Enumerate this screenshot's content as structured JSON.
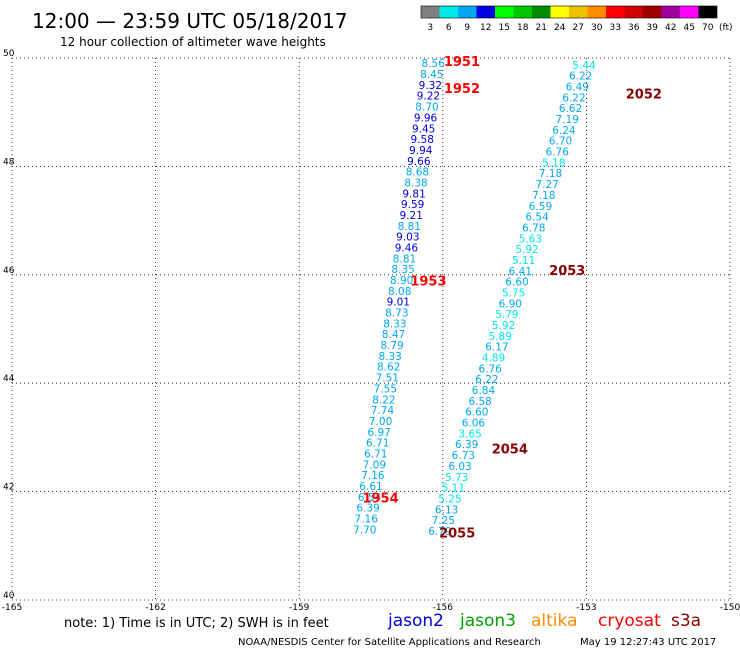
{
  "header": {
    "title": "12:00 — 23:59 UTC 05/18/2017",
    "subtitle": "12 hour collection of altimeter wave heights"
  },
  "legend_scale": {
    "labels": [
      "3",
      "6",
      "9",
      "12",
      "15",
      "18",
      "21",
      "24",
      "27",
      "30",
      "33",
      "36",
      "39",
      "42",
      "45",
      "70"
    ],
    "unit": "(ft)",
    "colors": [
      "#808080",
      "#00e8e8",
      "#00a8f0",
      "#0000e0",
      "#00ff00",
      "#00c800",
      "#008c00",
      "#ffff00",
      "#f0c000",
      "#ff8c00",
      "#ff0000",
      "#d00000",
      "#a00000",
      "#a000a0",
      "#ff00ff",
      "#000000"
    ]
  },
  "footer": {
    "note": "note: 1) Time is in UTC; 2) SWH is in feet",
    "credit": "NOAA/NESDIS Center for Satellite Applications and Research",
    "timestamp": "May 19 12:27:43 UTC 2017",
    "satellites": [
      {
        "name": "jason2",
        "color": "#0000e0"
      },
      {
        "name": "jason3",
        "color": "#00a000"
      },
      {
        "name": "altika",
        "color": "#ff8c00"
      },
      {
        "name": "cryosat",
        "color": "#ff0000"
      },
      {
        "name": "s3a",
        "color": "#8b0000"
      }
    ]
  },
  "chart_data": {
    "type": "scatter",
    "title": "12:00 — 23:59 UTC 05/18/2017",
    "subtitle": "12 hour collection of altimeter wave heights",
    "xlabel": "",
    "ylabel": "",
    "xlim": [
      -165,
      -150
    ],
    "ylim": [
      40,
      50
    ],
    "grid": true,
    "x_ticks": [
      "-165",
      "-162",
      "-159",
      "-156",
      "-153",
      "-150"
    ],
    "y_ticks": [
      "40",
      "42",
      "44",
      "46",
      "48",
      "50"
    ],
    "series": [
      {
        "name": "jason2",
        "color_by_value": true,
        "points": [
          {
            "x": -156.2,
            "y": 49.83,
            "v": "8.56"
          },
          {
            "x": -156.23,
            "y": 49.63,
            "v": "8.45"
          },
          {
            "x": -156.26,
            "y": 49.43,
            "v": "9.32"
          },
          {
            "x": -156.3,
            "y": 49.23,
            "v": "9.22"
          },
          {
            "x": -156.33,
            "y": 49.03,
            "v": "8.70"
          },
          {
            "x": -156.36,
            "y": 48.83,
            "v": "9.96"
          },
          {
            "x": -156.4,
            "y": 48.63,
            "v": "9.45"
          },
          {
            "x": -156.43,
            "y": 48.43,
            "v": "9.58"
          },
          {
            "x": -156.46,
            "y": 48.23,
            "v": "9.94"
          },
          {
            "x": -156.5,
            "y": 48.03,
            "v": "9.66"
          },
          {
            "x": -156.53,
            "y": 47.83,
            "v": "8.68"
          },
          {
            "x": -156.56,
            "y": 47.63,
            "v": "8.38"
          },
          {
            "x": -156.6,
            "y": 47.43,
            "v": "9.81"
          },
          {
            "x": -156.63,
            "y": 47.23,
            "v": "9.59"
          },
          {
            "x": -156.66,
            "y": 47.03,
            "v": "9.21"
          },
          {
            "x": -156.7,
            "y": 46.83,
            "v": "8.81"
          },
          {
            "x": -156.73,
            "y": 46.63,
            "v": "9.03"
          },
          {
            "x": -156.76,
            "y": 46.43,
            "v": "9.46"
          },
          {
            "x": -156.8,
            "y": 46.23,
            "v": "8.81"
          },
          {
            "x": -156.83,
            "y": 46.03,
            "v": "8.35"
          },
          {
            "x": -156.86,
            "y": 45.83,
            "v": "8.90"
          },
          {
            "x": -156.9,
            "y": 45.63,
            "v": "8.08"
          },
          {
            "x": -156.93,
            "y": 45.43,
            "v": "9.01"
          },
          {
            "x": -156.96,
            "y": 45.23,
            "v": "8.73"
          },
          {
            "x": -157.0,
            "y": 45.03,
            "v": "8.33"
          },
          {
            "x": -157.03,
            "y": 44.83,
            "v": "8.47"
          },
          {
            "x": -157.06,
            "y": 44.63,
            "v": "8.79"
          },
          {
            "x": -157.1,
            "y": 44.43,
            "v": "8.33"
          },
          {
            "x": -157.13,
            "y": 44.23,
            "v": "8.62"
          },
          {
            "x": -157.16,
            "y": 44.03,
            "v": "7.51"
          },
          {
            "x": -157.2,
            "y": 43.83,
            "v": "7.55"
          },
          {
            "x": -157.23,
            "y": 43.63,
            "v": "8.22"
          },
          {
            "x": -157.26,
            "y": 43.43,
            "v": "7.74"
          },
          {
            "x": -157.3,
            "y": 43.23,
            "v": "7.00"
          },
          {
            "x": -157.33,
            "y": 43.03,
            "v": "6.97"
          },
          {
            "x": -157.36,
            "y": 42.83,
            "v": "6.71"
          },
          {
            "x": -157.4,
            "y": 42.63,
            "v": "6.71"
          },
          {
            "x": -157.43,
            "y": 42.43,
            "v": "7.09"
          },
          {
            "x": -157.46,
            "y": 42.23,
            "v": "7.16"
          },
          {
            "x": -157.5,
            "y": 42.03,
            "v": "6.61"
          },
          {
            "x": -157.53,
            "y": 41.83,
            "v": "6.54"
          },
          {
            "x": -157.56,
            "y": 41.63,
            "v": "6.39"
          },
          {
            "x": -157.6,
            "y": 41.43,
            "v": "7.16"
          },
          {
            "x": -157.63,
            "y": 41.23,
            "v": "7.70"
          }
        ]
      },
      {
        "name": "s3a",
        "color_by_value": true,
        "points": [
          {
            "x": -153.05,
            "y": 49.8,
            "v": "5.44"
          },
          {
            "x": -153.12,
            "y": 49.6,
            "v": "6.22"
          },
          {
            "x": -153.19,
            "y": 49.4,
            "v": "6.49"
          },
          {
            "x": -153.26,
            "y": 49.2,
            "v": "6.22"
          },
          {
            "x": -153.33,
            "y": 49.0,
            "v": "6.62"
          },
          {
            "x": -153.4,
            "y": 48.8,
            "v": "7.19"
          },
          {
            "x": -153.47,
            "y": 48.6,
            "v": "6.24"
          },
          {
            "x": -153.54,
            "y": 48.4,
            "v": "6.70"
          },
          {
            "x": -153.61,
            "y": 48.2,
            "v": "6.76"
          },
          {
            "x": -153.68,
            "y": 48.0,
            "v": "5.18"
          },
          {
            "x": -153.75,
            "y": 47.8,
            "v": "7.18"
          },
          {
            "x": -153.82,
            "y": 47.6,
            "v": "7.27"
          },
          {
            "x": -153.89,
            "y": 47.4,
            "v": "7.18"
          },
          {
            "x": -153.96,
            "y": 47.2,
            "v": "6.59"
          },
          {
            "x": -154.03,
            "y": 47.0,
            "v": "6.54"
          },
          {
            "x": -154.1,
            "y": 46.8,
            "v": "6.78"
          },
          {
            "x": -154.17,
            "y": 46.6,
            "v": "5.63"
          },
          {
            "x": -154.24,
            "y": 46.4,
            "v": "5.92"
          },
          {
            "x": -154.31,
            "y": 46.2,
            "v": "5.11"
          },
          {
            "x": -154.38,
            "y": 46.0,
            "v": "6.41"
          },
          {
            "x": -154.45,
            "y": 45.8,
            "v": "6.60"
          },
          {
            "x": -154.52,
            "y": 45.6,
            "v": "5.75"
          },
          {
            "x": -154.59,
            "y": 45.4,
            "v": "6.90"
          },
          {
            "x": -154.66,
            "y": 45.2,
            "v": "5.79"
          },
          {
            "x": -154.73,
            "y": 45.0,
            "v": "5.92"
          },
          {
            "x": -154.8,
            "y": 44.8,
            "v": "5.89"
          },
          {
            "x": -154.87,
            "y": 44.6,
            "v": "6.17"
          },
          {
            "x": -154.94,
            "y": 44.4,
            "v": "4.89"
          },
          {
            "x": -155.01,
            "y": 44.2,
            "v": "6.76"
          },
          {
            "x": -155.08,
            "y": 44.0,
            "v": "6.22"
          },
          {
            "x": -155.15,
            "y": 43.8,
            "v": "6.84"
          },
          {
            "x": -155.22,
            "y": 43.6,
            "v": "6.58"
          },
          {
            "x": -155.29,
            "y": 43.4,
            "v": "6.60"
          },
          {
            "x": -155.36,
            "y": 43.2,
            "v": "6.06"
          },
          {
            "x": -155.43,
            "y": 43.0,
            "v": "3.65"
          },
          {
            "x": -155.5,
            "y": 42.8,
            "v": "6.39"
          },
          {
            "x": -155.57,
            "y": 42.6,
            "v": "6.73"
          },
          {
            "x": -155.64,
            "y": 42.4,
            "v": "6.03"
          },
          {
            "x": -155.71,
            "y": 42.2,
            "v": "5.73"
          },
          {
            "x": -155.78,
            "y": 42.0,
            "v": "5.11"
          },
          {
            "x": -155.85,
            "y": 41.8,
            "v": "5.25"
          },
          {
            "x": -155.92,
            "y": 41.6,
            "v": "6.13"
          },
          {
            "x": -155.99,
            "y": 41.4,
            "v": "7.25"
          },
          {
            "x": -156.06,
            "y": 41.2,
            "v": "6.79"
          }
        ]
      }
    ],
    "annotations": [
      {
        "text": "1951",
        "x": -155.6,
        "y": 49.85,
        "color": "#ff0000"
      },
      {
        "text": "1952",
        "x": -155.6,
        "y": 49.35,
        "color": "#ff0000"
      },
      {
        "text": "2052",
        "x": -151.8,
        "y": 49.25,
        "color": "#8b0000"
      },
      {
        "text": "1953",
        "x": -156.3,
        "y": 45.8,
        "color": "#ff0000"
      },
      {
        "text": "2053",
        "x": -153.4,
        "y": 46.0,
        "color": "#8b0000"
      },
      {
        "text": "2054",
        "x": -154.6,
        "y": 42.7,
        "color": "#8b0000"
      },
      {
        "text": "1954",
        "x": -157.3,
        "y": 41.8,
        "color": "#ff0000"
      },
      {
        "text": "2055",
        "x": -155.7,
        "y": 41.15,
        "color": "#8b0000"
      }
    ]
  }
}
